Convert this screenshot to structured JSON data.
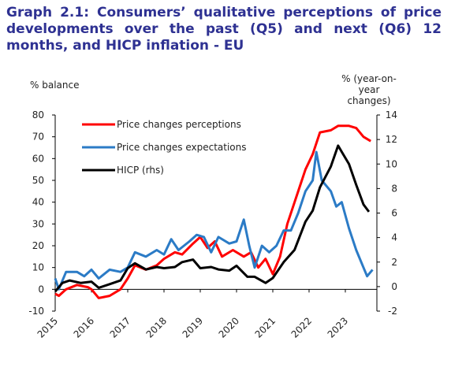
{
  "chart_data": {
    "type": "line",
    "title": "Graph 2.1: Consumers’ qualitative perceptions of price developments over the past (Q5) and next (Q6) 12 months, and HICP inflation - EU",
    "ylabel": "% balance",
    "y2label": [
      "% (year-on-",
      "year",
      "changes)"
    ],
    "xlim": [
      2015,
      2023.87
    ],
    "xticks": [
      2015,
      2016,
      2017,
      2018,
      2019,
      2020,
      2021,
      2022,
      2023
    ],
    "ylim": [
      -10,
      80
    ],
    "yticks": [
      -10,
      0,
      10,
      20,
      30,
      40,
      50,
      60,
      70,
      80
    ],
    "y2lim": [
      -2,
      14
    ],
    "y2ticks": [
      -2,
      0,
      2,
      4,
      6,
      8,
      10,
      12,
      14
    ],
    "grid": false,
    "legend": "upper-left",
    "series": [
      {
        "name": "Price changes perceptions",
        "color": "#ff0000",
        "x": [
          2015.0,
          2015.1,
          2015.3,
          2015.6,
          2015.9,
          2016.0,
          2016.2,
          2016.5,
          2016.8,
          2017.0,
          2017.2,
          2017.5,
          2017.8,
          2018.0,
          2018.3,
          2018.5,
          2018.8,
          2019.0,
          2019.2,
          2019.4,
          2019.6,
          2019.9,
          2020.2,
          2020.4,
          2020.6,
          2020.8,
          2021.0,
          2021.2,
          2021.4,
          2021.6,
          2021.9,
          2022.1,
          2022.3,
          2022.6,
          2022.8,
          2023.1,
          2023.3,
          2023.5,
          2023.7
        ],
        "values": [
          -2,
          -3,
          0,
          2,
          1,
          0,
          -4,
          -3,
          0,
          5,
          11,
          9,
          11,
          14,
          17,
          16,
          21,
          24,
          19,
          22,
          15,
          18,
          15,
          17,
          10,
          14,
          7,
          15,
          30,
          40,
          55,
          62,
          72,
          73,
          75,
          75,
          74,
          70,
          68
        ]
      },
      {
        "name": "Price changes expectations",
        "color": "#2b7bc6",
        "x": [
          2015.0,
          2015.1,
          2015.3,
          2015.6,
          2015.8,
          2016.0,
          2016.2,
          2016.5,
          2016.8,
          2017.0,
          2017.2,
          2017.5,
          2017.8,
          2018.0,
          2018.2,
          2018.4,
          2018.7,
          2018.9,
          2019.1,
          2019.3,
          2019.5,
          2019.8,
          2020.0,
          2020.2,
          2020.35,
          2020.5,
          2020.7,
          2020.9,
          2021.1,
          2021.3,
          2021.5,
          2021.7,
          2021.9,
          2022.1,
          2022.2,
          2022.35,
          2022.6,
          2022.75,
          2022.9,
          2023.1,
          2023.3,
          2023.5,
          2023.6,
          2023.75
        ],
        "values": [
          5,
          0,
          8,
          8,
          6,
          9,
          5,
          9,
          8,
          10,
          17,
          15,
          18,
          16,
          23,
          18,
          22,
          25,
          24,
          17,
          24,
          21,
          22,
          32,
          20,
          10,
          20,
          17,
          20,
          27,
          27,
          35,
          45,
          50,
          63,
          50,
          45,
          38,
          40,
          28,
          18,
          10,
          6,
          9
        ]
      },
      {
        "name": "HICP (rhs)",
        "color": "#000000",
        "axis": "y2",
        "x": [
          2015.0,
          2015.2,
          2015.4,
          2015.7,
          2016.0,
          2016.2,
          2016.5,
          2016.8,
          2017.0,
          2017.2,
          2017.5,
          2017.8,
          2018.0,
          2018.3,
          2018.5,
          2018.8,
          2019.0,
          2019.3,
          2019.5,
          2019.8,
          2020.0,
          2020.3,
          2020.5,
          2020.8,
          2021.0,
          2021.3,
          2021.6,
          2021.9,
          2022.1,
          2022.3,
          2022.6,
          2022.8,
          2022.9,
          2023.1,
          2023.3,
          2023.5,
          2023.65
        ],
        "values": [
          -0.4,
          0.3,
          0.5,
          0.3,
          0.4,
          -0.1,
          0.2,
          0.5,
          1.5,
          1.9,
          1.4,
          1.6,
          1.5,
          1.6,
          2.0,
          2.2,
          1.5,
          1.6,
          1.4,
          1.3,
          1.7,
          0.8,
          0.8,
          0.3,
          0.7,
          2.0,
          3.0,
          5.3,
          6.2,
          8.1,
          9.8,
          11.5,
          11.0,
          10.0,
          8.3,
          6.7,
          6.1
        ]
      }
    ]
  }
}
